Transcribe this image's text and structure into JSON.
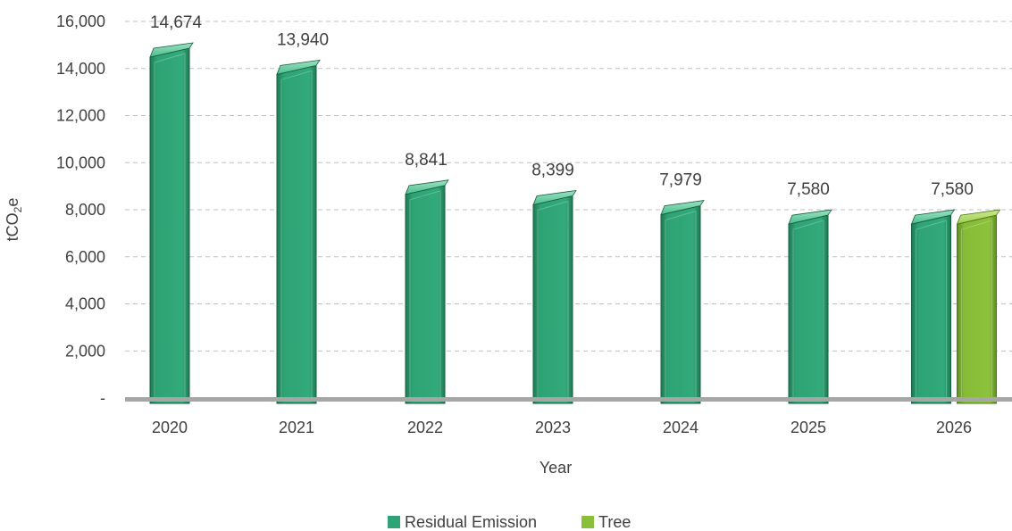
{
  "chart_data": {
    "type": "bar",
    "categories": [
      "2020",
      "2021",
      "2022",
      "2023",
      "2024",
      "2025",
      "2026"
    ],
    "series": [
      {
        "name": "Residual Emission",
        "values": [
          14674,
          13940,
          8841,
          8399,
          7979,
          7580,
          7580
        ],
        "color": "#2ea375"
      },
      {
        "name": "Tree",
        "values": [
          null,
          null,
          null,
          null,
          null,
          null,
          7580
        ],
        "color": "#8abf3a"
      }
    ],
    "data_labels": [
      "14,674",
      "13,940",
      "8,841",
      "8,399",
      "7,979",
      "7,580",
      "7,580"
    ],
    "y_ticks": [
      "-",
      "2,000",
      "4,000",
      "6,000",
      "8,000",
      "10,000",
      "12,000",
      "14,000",
      "16,000"
    ],
    "y_tick_values": [
      0,
      2000,
      4000,
      6000,
      8000,
      10000,
      12000,
      14000,
      16000
    ],
    "ylim": [
      0,
      16000
    ],
    "xlabel": "Year",
    "ylabel_main": "tCO",
    "ylabel_sub": "2",
    "ylabel_tail": "e",
    "grid": true,
    "legend_position": "bottom"
  }
}
